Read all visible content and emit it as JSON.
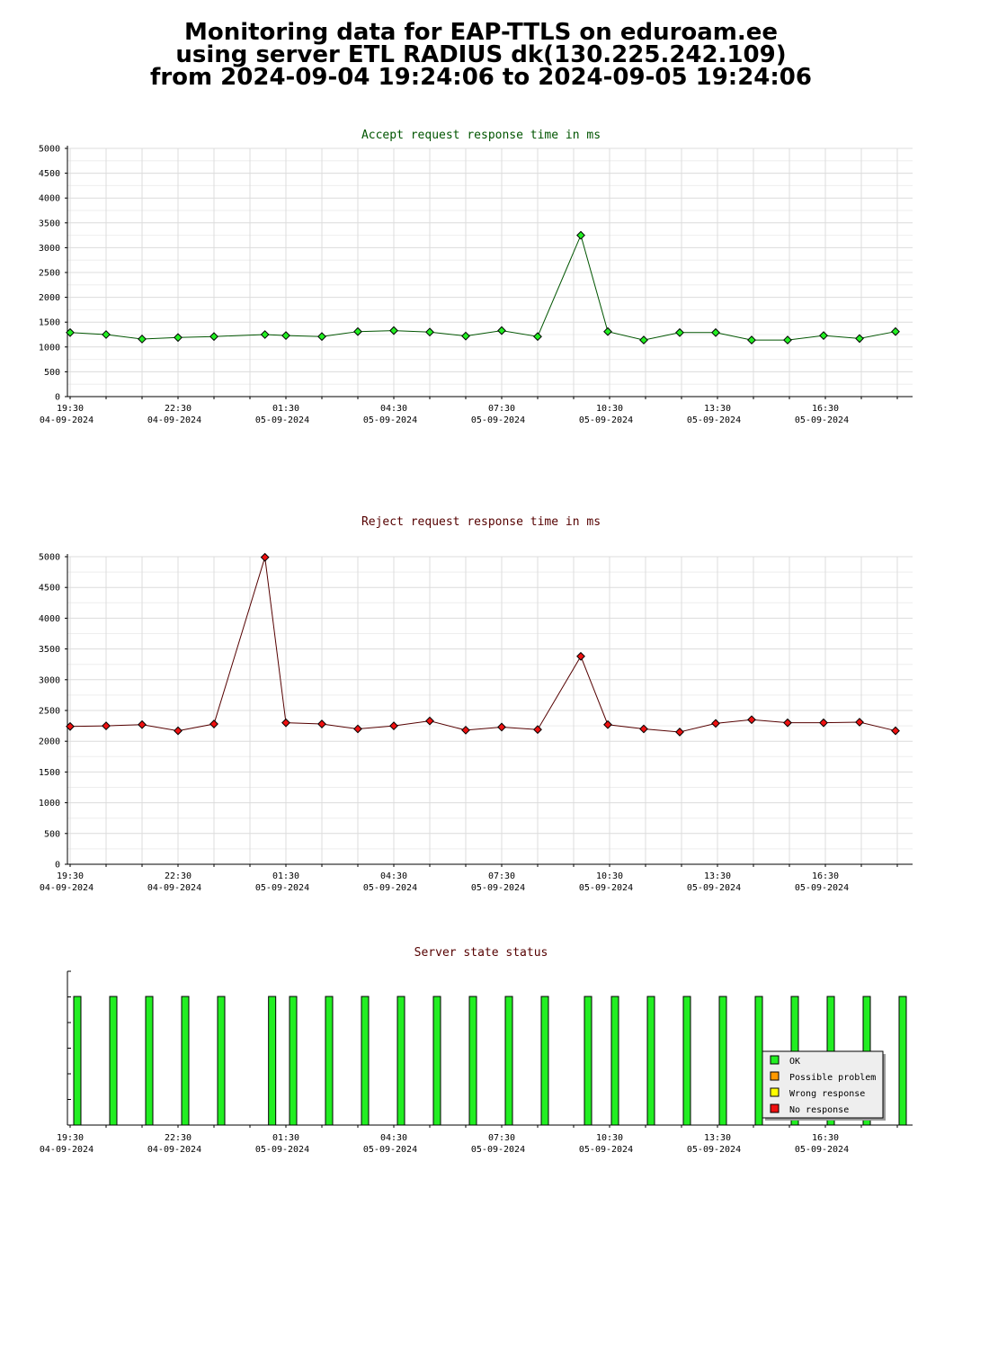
{
  "header": {
    "line1": "Monitoring data for EAP-TTLS on eduroam.ee",
    "line2": "using server ETL RADIUS dk(130.225.242.109)",
    "line3": "from 2024-09-04 19:24:06 to 2024-09-05 19:24:06"
  },
  "x_ticks": [
    {
      "time": "19:30",
      "date": "04-09-2024"
    },
    {
      "time": "22:30",
      "date": "04-09-2024"
    },
    {
      "time": "01:30",
      "date": "05-09-2024"
    },
    {
      "time": "04:30",
      "date": "05-09-2024"
    },
    {
      "time": "07:30",
      "date": "05-09-2024"
    },
    {
      "time": "10:30",
      "date": "05-09-2024"
    },
    {
      "time": "13:30",
      "date": "05-09-2024"
    },
    {
      "time": "16:30",
      "date": "05-09-2024"
    }
  ],
  "colors": {
    "accept_title": "#005500",
    "reject_title": "#550000",
    "state_title": "#550000",
    "accept_line": "#005500",
    "reject_line": "#550000",
    "ok": "#22ee22",
    "possible_problem": "#ff9900",
    "wrong_response": "#ffff00",
    "no_response": "#ee1111",
    "grid": "#dcdcdc"
  },
  "chart_data": [
    {
      "type": "line",
      "title": "Accept request response time in ms",
      "ylim": [
        0,
        5000
      ],
      "yticks": [
        0,
        500,
        1000,
        1500,
        2000,
        2500,
        3000,
        3500,
        4000,
        4500,
        5000
      ],
      "x": [
        "2024-09-04 19:30",
        "2024-09-04 20:30",
        "2024-09-04 21:30",
        "2024-09-04 22:30",
        "2024-09-04 23:30",
        "2024-09-05 00:55",
        "2024-09-05 01:30",
        "2024-09-05 02:30",
        "2024-09-05 03:30",
        "2024-09-05 04:30",
        "2024-09-05 05:30",
        "2024-09-05 06:30",
        "2024-09-05 07:30",
        "2024-09-05 08:30",
        "2024-09-05 09:42",
        "2024-09-05 10:27",
        "2024-09-05 11:27",
        "2024-09-05 12:27",
        "2024-09-05 13:27",
        "2024-09-05 14:27",
        "2024-09-05 15:27",
        "2024-09-05 16:27",
        "2024-09-05 17:27",
        "2024-09-05 18:27"
      ],
      "values": [
        1290,
        1250,
        1160,
        1190,
        1210,
        1250,
        1230,
        1210,
        1310,
        1330,
        1300,
        1220,
        1330,
        1210,
        3250,
        1310,
        1140,
        1290,
        1290,
        1140,
        1140,
        1230,
        1170,
        1310
      ]
    },
    {
      "type": "line",
      "title": "Reject request response time in ms",
      "ylim": [
        0,
        5000
      ],
      "yticks": [
        0,
        500,
        1000,
        1500,
        2000,
        2500,
        3000,
        3500,
        4000,
        4500,
        5000
      ],
      "x": [
        "2024-09-04 19:30",
        "2024-09-04 20:30",
        "2024-09-04 21:30",
        "2024-09-04 22:30",
        "2024-09-04 23:30",
        "2024-09-05 00:55",
        "2024-09-05 01:30",
        "2024-09-05 02:30",
        "2024-09-05 03:30",
        "2024-09-05 04:30",
        "2024-09-05 05:30",
        "2024-09-05 06:30",
        "2024-09-05 07:30",
        "2024-09-05 08:30",
        "2024-09-05 09:42",
        "2024-09-05 10:27",
        "2024-09-05 11:27",
        "2024-09-05 12:27",
        "2024-09-05 13:27",
        "2024-09-05 14:27",
        "2024-09-05 15:27",
        "2024-09-05 16:27",
        "2024-09-05 17:27",
        "2024-09-05 18:27"
      ],
      "values": [
        2240,
        2250,
        2270,
        2170,
        2280,
        4990,
        2300,
        2280,
        2200,
        2250,
        2330,
        2180,
        2230,
        2190,
        3380,
        2270,
        2200,
        2150,
        2290,
        2350,
        2300,
        2300,
        2310,
        2170
      ]
    },
    {
      "type": "bar",
      "title": "Server state status",
      "x": [
        "2024-09-04 19:30",
        "2024-09-04 20:30",
        "2024-09-04 21:30",
        "2024-09-04 22:30",
        "2024-09-04 23:30",
        "2024-09-05 00:55",
        "2024-09-05 01:30",
        "2024-09-05 02:30",
        "2024-09-05 03:30",
        "2024-09-05 04:30",
        "2024-09-05 05:30",
        "2024-09-05 06:30",
        "2024-09-05 07:30",
        "2024-09-05 08:30",
        "2024-09-05 09:42",
        "2024-09-05 10:27",
        "2024-09-05 11:27",
        "2024-09-05 12:27",
        "2024-09-05 13:27",
        "2024-09-05 14:27",
        "2024-09-05 15:27",
        "2024-09-05 16:27",
        "2024-09-05 17:27",
        "2024-09-05 18:27"
      ],
      "states": [
        "OK",
        "OK",
        "OK",
        "OK",
        "OK",
        "OK",
        "OK",
        "OK",
        "OK",
        "OK",
        "OK",
        "OK",
        "OK",
        "OK",
        "OK",
        "OK",
        "OK",
        "OK",
        "OK",
        "OK",
        "OK",
        "OK",
        "OK",
        "OK"
      ],
      "legend": [
        {
          "label": "OK",
          "color": "#22ee22"
        },
        {
          "label": "Possible problem",
          "color": "#ff9900"
        },
        {
          "label": "Wrong response",
          "color": "#ffff00"
        },
        {
          "label": "No response",
          "color": "#ee1111"
        }
      ],
      "legend_position": "bottom-right"
    }
  ]
}
